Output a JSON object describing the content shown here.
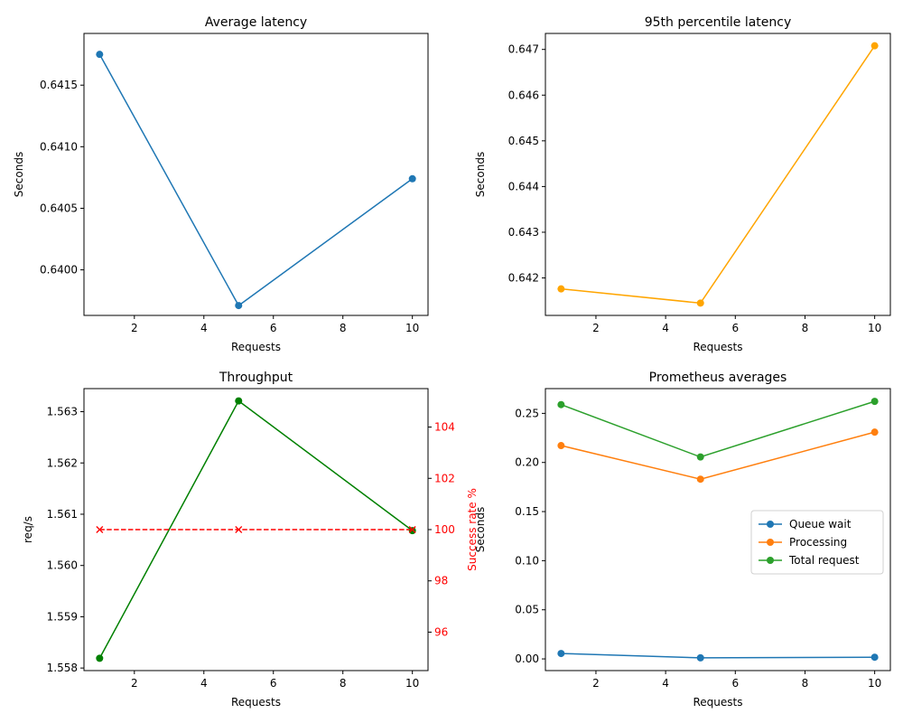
{
  "colors": {
    "blue": "#1f77b4",
    "orange": "#ff7f0e",
    "green": "#2ca02c",
    "line_orange": "#ffa500",
    "line_green": "#008000",
    "red": "#ff0000"
  },
  "chart_data": [
    {
      "id": "avg",
      "type": "line",
      "title": "Average latency",
      "xlabel": "Requests",
      "ylabel": "Seconds",
      "xlim": [
        0.55,
        10.45
      ],
      "ylim": [
        0.63963,
        0.64192
      ],
      "xticks": [
        2,
        4,
        6,
        8,
        10
      ],
      "xtick_labels": [
        "2",
        "4",
        "6",
        "8",
        "10"
      ],
      "yticks": [
        0.64,
        0.6405,
        0.641,
        0.6415
      ],
      "ytick_labels": [
        "0.6400",
        "0.6405",
        "0.6410",
        "0.6415"
      ],
      "series": [
        {
          "x": [
            1,
            5,
            10
          ],
          "values": [
            0.64175,
            0.63971,
            0.64074
          ],
          "color": "#1f77b4",
          "marker": "o",
          "linestyle": "solid"
        }
      ],
      "grid": false
    },
    {
      "id": "p95",
      "type": "line",
      "title": "95th percentile latency",
      "xlabel": "Requests",
      "ylabel": "Seconds",
      "xlim": [
        0.55,
        10.45
      ],
      "ylim": [
        0.64118,
        0.64735
      ],
      "xticks": [
        2,
        4,
        6,
        8,
        10
      ],
      "xtick_labels": [
        "2",
        "4",
        "6",
        "8",
        "10"
      ],
      "yticks": [
        0.642,
        0.643,
        0.644,
        0.645,
        0.646,
        0.647
      ],
      "ytick_labels": [
        "0.642",
        "0.643",
        "0.644",
        "0.645",
        "0.646",
        "0.647"
      ],
      "series": [
        {
          "x": [
            1,
            5,
            10
          ],
          "values": [
            0.64176,
            0.64145,
            0.64708
          ],
          "color": "#ffa500",
          "marker": "o",
          "linestyle": "solid"
        }
      ],
      "grid": false
    },
    {
      "id": "thr",
      "type": "line",
      "title": "Throughput",
      "xlabel": "Requests",
      "ylabel": "req/s",
      "ylabel_right": "Success rate %",
      "xlim": [
        0.55,
        10.45
      ],
      "ylim": [
        1.55795,
        1.56345
      ],
      "ylim_right": [
        94.5,
        105.5
      ],
      "xticks": [
        2,
        4,
        6,
        8,
        10
      ],
      "xtick_labels": [
        "2",
        "4",
        "6",
        "8",
        "10"
      ],
      "yticks": [
        1.558,
        1.559,
        1.56,
        1.561,
        1.562,
        1.563
      ],
      "ytick_labels": [
        "1.558",
        "1.559",
        "1.560",
        "1.561",
        "1.562",
        "1.563"
      ],
      "yticks_right": [
        96,
        98,
        100,
        102,
        104
      ],
      "ytick_labels_right": [
        "96",
        "98",
        "100",
        "102",
        "104"
      ],
      "series": [
        {
          "axis": "left",
          "x": [
            1,
            5,
            10
          ],
          "values": [
            1.55819,
            1.56321,
            1.56068
          ],
          "color": "#008000",
          "marker": "o",
          "linestyle": "solid"
        },
        {
          "axis": "right",
          "x": [
            1,
            5,
            10
          ],
          "values": [
            100,
            100,
            100
          ],
          "color": "#ff0000",
          "marker": "x",
          "linestyle": "dashed"
        }
      ],
      "grid": false
    },
    {
      "id": "prom",
      "type": "line",
      "title": "Prometheus averages",
      "xlabel": "Requests",
      "ylabel": "Seconds",
      "xlim": [
        0.55,
        10.45
      ],
      "ylim": [
        -0.0119,
        0.2752
      ],
      "xticks": [
        2,
        4,
        6,
        8,
        10
      ],
      "xtick_labels": [
        "2",
        "4",
        "6",
        "8",
        "10"
      ],
      "yticks": [
        0.0,
        0.05,
        0.1,
        0.15,
        0.2,
        0.25
      ],
      "ytick_labels": [
        "0.00",
        "0.05",
        "0.10",
        "0.15",
        "0.20",
        "0.25"
      ],
      "legend": "center-right",
      "series": [
        {
          "name": "Queue wait",
          "x": [
            1,
            5,
            10
          ],
          "values": [
            0.0055,
            0.0011,
            0.0017
          ],
          "color": "#1f77b4",
          "marker": "o",
          "linestyle": "solid"
        },
        {
          "name": "Processing",
          "x": [
            1,
            5,
            10
          ],
          "values": [
            0.2172,
            0.183,
            0.2309
          ],
          "color": "#ff7f0e",
          "marker": "o",
          "linestyle": "solid"
        },
        {
          "name": "Total request",
          "x": [
            1,
            5,
            10
          ],
          "values": [
            0.2589,
            0.2056,
            0.2622
          ],
          "color": "#2ca02c",
          "marker": "o",
          "linestyle": "solid"
        }
      ],
      "grid": false
    }
  ]
}
